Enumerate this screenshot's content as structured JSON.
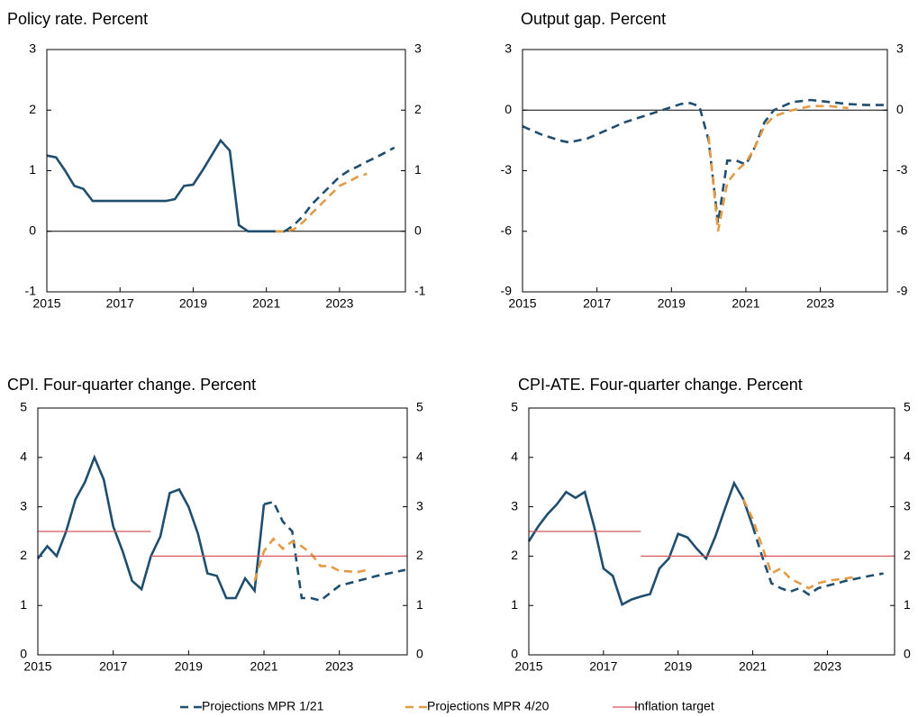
{
  "chart_data": [
    {
      "type": "line",
      "title": "Policy rate. Percent",
      "xlim": [
        2015,
        2024.8
      ],
      "xticks": [
        2015,
        2017,
        2019,
        2021,
        2023
      ],
      "ylim": [
        -1,
        3
      ],
      "yticks": [
        -1,
        0,
        1,
        2,
        3
      ],
      "right_axis": true,
      "zero_line": true,
      "series": [
        {
          "color": "#1f4e6e",
          "style": "solid",
          "x": [
            2015,
            2015.25,
            2015.5,
            2015.75,
            2016,
            2016.25,
            2016.5,
            2016.75,
            2017,
            2017.25,
            2017.5,
            2017.75,
            2018,
            2018.25,
            2018.5,
            2018.75,
            2019,
            2019.25,
            2019.5,
            2019.75,
            2020,
            2020.25,
            2020.5,
            2020.75,
            2021,
            2021.25,
            2021.5
          ],
          "values": [
            1.25,
            1.22,
            1.0,
            0.75,
            0.7,
            0.5,
            0.5,
            0.5,
            0.5,
            0.5,
            0.5,
            0.5,
            0.5,
            0.5,
            0.53,
            0.75,
            0.77,
            1.0,
            1.25,
            1.5,
            1.33,
            0.1,
            0.0,
            0.0,
            0.0,
            0.0,
            0.0
          ]
        },
        {
          "name": "Projections MPR 1/21",
          "color": "#1f4e6e",
          "style": "dashed",
          "x": [
            2021.5,
            2021.75,
            2022,
            2022.25,
            2022.5,
            2022.75,
            2023,
            2023.25,
            2023.5,
            2023.75,
            2024,
            2024.25,
            2024.5
          ],
          "values": [
            0.0,
            0.1,
            0.25,
            0.45,
            0.6,
            0.75,
            0.9,
            1.0,
            1.07,
            1.15,
            1.22,
            1.3,
            1.38
          ]
        },
        {
          "name": "Projections MPR 4/20",
          "color": "#e39b45",
          "style": "dashed",
          "x": [
            2021.25,
            2021.5,
            2021.75,
            2022,
            2022.25,
            2022.5,
            2022.75,
            2023,
            2023.25,
            2023.5,
            2023.75
          ],
          "values": [
            0.0,
            0.0,
            0.03,
            0.15,
            0.3,
            0.45,
            0.6,
            0.75,
            0.82,
            0.9,
            0.95
          ]
        }
      ]
    },
    {
      "type": "line",
      "title": "Output gap. Percent",
      "xlim": [
        2015,
        2024.8
      ],
      "xticks": [
        2015,
        2017,
        2019,
        2021,
        2023
      ],
      "ylim": [
        -9,
        3
      ],
      "yticks": [
        -9,
        -6,
        -3,
        0,
        3
      ],
      "right_axis": true,
      "zero_line": true,
      "series": [
        {
          "name": "Projections MPR 1/21",
          "color": "#1f4e6e",
          "style": "dashed",
          "x": [
            2015,
            2015.5,
            2016,
            2016.25,
            2016.75,
            2017.25,
            2017.75,
            2018.25,
            2018.75,
            2019.25,
            2019.5,
            2019.75,
            2020,
            2020.25,
            2020.5,
            2020.75,
            2021,
            2021.25,
            2021.5,
            2021.75,
            2022.25,
            2022.75,
            2023.25,
            2023.75,
            2024.25,
            2024.75
          ],
          "values": [
            -0.8,
            -1.2,
            -1.5,
            -1.6,
            -1.4,
            -1.0,
            -0.6,
            -0.3,
            0.0,
            0.3,
            0.35,
            0.2,
            -1.5,
            -5.6,
            -2.5,
            -2.5,
            -2.7,
            -1.8,
            -0.6,
            0.0,
            0.4,
            0.5,
            0.4,
            0.3,
            0.25,
            0.25
          ]
        },
        {
          "name": "Projections MPR 4/20",
          "color": "#e39b45",
          "style": "dashed",
          "x": [
            2020,
            2020.25,
            2020.5,
            2020.75,
            2021,
            2021.25,
            2021.5,
            2021.75,
            2022.25,
            2022.75,
            2023.25,
            2023.75
          ],
          "values": [
            -1.3,
            -6.0,
            -3.6,
            -3.0,
            -2.6,
            -1.8,
            -0.8,
            -0.3,
            0.0,
            0.2,
            0.2,
            0.1
          ]
        }
      ]
    },
    {
      "type": "line",
      "title": "CPI. Four-quarter change. Percent",
      "xlim": [
        2015,
        2024.8
      ],
      "xticks": [
        2015,
        2017,
        2019,
        2021,
        2023
      ],
      "ylim": [
        0,
        5
      ],
      "yticks": [
        0,
        1,
        2,
        3,
        4,
        5
      ],
      "right_axis": true,
      "zero_line": false,
      "series": [
        {
          "color": "#1f4e6e",
          "style": "solid",
          "x": [
            2015,
            2015.25,
            2015.5,
            2015.75,
            2016,
            2016.25,
            2016.5,
            2016.75,
            2017,
            2017.25,
            2017.5,
            2017.75,
            2018,
            2018.25,
            2018.5,
            2018.75,
            2019,
            2019.25,
            2019.5,
            2019.75,
            2020,
            2020.25,
            2020.5,
            2020.75,
            2021
          ],
          "values": [
            1.95,
            2.2,
            2.0,
            2.5,
            3.15,
            3.5,
            4.0,
            3.55,
            2.6,
            2.1,
            1.5,
            1.33,
            2.0,
            2.4,
            3.28,
            3.35,
            3.0,
            2.45,
            1.65,
            1.6,
            1.15,
            1.15,
            1.55,
            1.3,
            3.05
          ]
        },
        {
          "name": "Projections MPR 1/21",
          "color": "#1f4e6e",
          "style": "dashed",
          "x": [
            2021,
            2021.25,
            2021.5,
            2021.75,
            2022,
            2022.25,
            2022.5,
            2022.75,
            2023,
            2023.5,
            2024,
            2024.5,
            2024.75
          ],
          "values": [
            3.05,
            3.1,
            2.7,
            2.5,
            1.15,
            1.15,
            1.1,
            1.25,
            1.4,
            1.5,
            1.6,
            1.68,
            1.72
          ]
        },
        {
          "name": "Projections MPR 4/20",
          "color": "#e39b45",
          "style": "dashed",
          "x": [
            2020.75,
            2021,
            2021.25,
            2021.5,
            2021.75,
            2022,
            2022.25,
            2022.5,
            2022.75,
            2023,
            2023.5,
            2023.75
          ],
          "values": [
            1.5,
            2.1,
            2.35,
            2.15,
            2.3,
            2.2,
            2.05,
            1.8,
            1.8,
            1.7,
            1.68,
            1.72
          ]
        },
        {
          "name": "Inflation target",
          "color": "#d7585c",
          "style": "thin",
          "x": [
            2015,
            2018,
            2018,
            2018,
            2024.8
          ],
          "values": [
            2.5,
            2.5,
            null,
            2,
            2
          ]
        }
      ]
    },
    {
      "type": "line",
      "title": "CPI-ATE. Four-quarter change. Percent",
      "xlim": [
        2015,
        2024.8
      ],
      "xticks": [
        2015,
        2017,
        2019,
        2021,
        2023
      ],
      "ylim": [
        0,
        5
      ],
      "yticks": [
        0,
        1,
        2,
        3,
        4,
        5
      ],
      "right_axis": true,
      "zero_line": false,
      "series": [
        {
          "color": "#1f4e6e",
          "style": "solid",
          "x": [
            2015,
            2015.25,
            2015.5,
            2015.75,
            2016,
            2016.25,
            2016.5,
            2016.75,
            2017,
            2017.25,
            2017.5,
            2017.75,
            2018,
            2018.25,
            2018.5,
            2018.75,
            2019,
            2019.25,
            2019.5,
            2019.75,
            2020,
            2020.25,
            2020.5,
            2020.75,
            2021
          ],
          "values": [
            2.3,
            2.6,
            2.85,
            3.05,
            3.3,
            3.18,
            3.3,
            2.6,
            1.75,
            1.6,
            1.02,
            1.12,
            1.18,
            1.23,
            1.75,
            1.95,
            2.45,
            2.38,
            2.15,
            1.95,
            2.4,
            2.95,
            3.48,
            3.15,
            2.6
          ]
        },
        {
          "name": "Projections MPR 1/21",
          "color": "#1f4e6e",
          "style": "dashed",
          "x": [
            2021,
            2021.25,
            2021.5,
            2021.75,
            2022,
            2022.25,
            2022.5,
            2022.75,
            2023,
            2023.5,
            2024,
            2024.5
          ],
          "values": [
            2.6,
            2.0,
            1.45,
            1.35,
            1.28,
            1.35,
            1.22,
            1.35,
            1.4,
            1.5,
            1.58,
            1.65
          ]
        },
        {
          "name": "Projections MPR 4/20",
          "color": "#e39b45",
          "style": "dashed",
          "x": [
            2020.75,
            2021,
            2021.25,
            2021.5,
            2021.75,
            2022,
            2022.25,
            2022.5,
            2022.75,
            2023,
            2023.5,
            2023.75
          ],
          "values": [
            3.15,
            2.75,
            2.2,
            1.65,
            1.75,
            1.55,
            1.45,
            1.35,
            1.45,
            1.5,
            1.55,
            1.58
          ]
        },
        {
          "name": "Inflation target",
          "color": "#d7585c",
          "style": "thin",
          "x": [
            2015,
            2018,
            2018,
            2018,
            2024.8
          ],
          "values": [
            2.5,
            2.5,
            null,
            2,
            2
          ]
        }
      ]
    }
  ],
  "legend": {
    "position": "bottom",
    "from_chart": 2
  }
}
